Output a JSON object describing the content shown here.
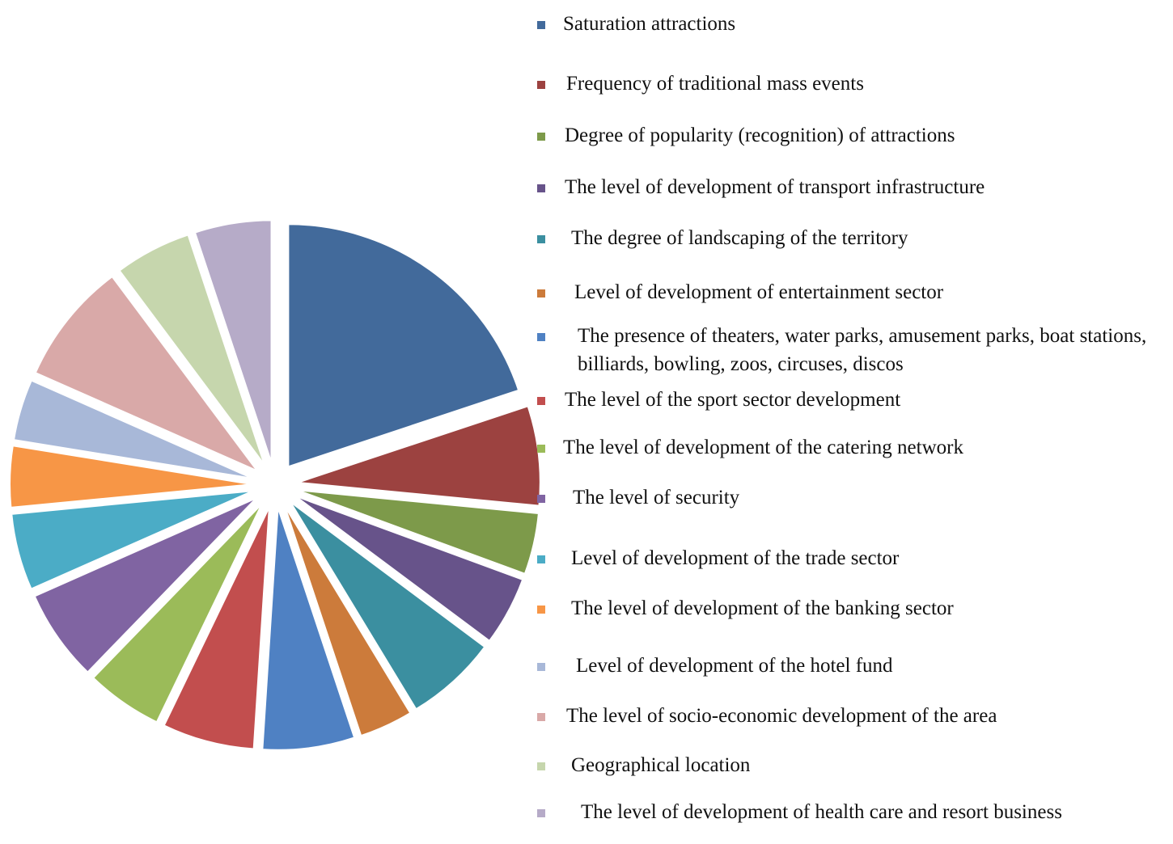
{
  "chart_data": {
    "type": "pie",
    "title": "",
    "exploded": true,
    "legend_position": "right",
    "start_angle_deg": 0,
    "direction": "clockwise",
    "slices": [
      {
        "label": "Saturation attractions",
        "value": 19.5,
        "color": "#426A9B"
      },
      {
        "label": "Frequency of traditional mass events",
        "value": 6.5,
        "color": "#9C4240"
      },
      {
        "label": "Degree of popularity (recognition) of attractions",
        "value": 4.0,
        "color": "#7D9A4A"
      },
      {
        "label": "The level of development of transport infrastructure",
        "value": 4.5,
        "color": "#67538A"
      },
      {
        "label": "The degree of landscaping of the territory",
        "value": 6.0,
        "color": "#3B8FA0"
      },
      {
        "label": "Level of development of entertainment sector",
        "value": 3.5,
        "color": "#CC7B3B"
      },
      {
        "label": "The presence of theaters, water parks, amusement parks, boat stations, billiards, bowling, zoos, circuses, discos",
        "value": 6.0,
        "color": "#4F81C3"
      },
      {
        "label": "The level of the sport sector development",
        "value": 6.0,
        "color": "#C24E4E"
      },
      {
        "label": "The level of development of the catering network",
        "value": 5.0,
        "color": "#9BBB59"
      },
      {
        "label": "The level of security",
        "value": 6.0,
        "color": "#8064A2"
      },
      {
        "label": "Level of development of the trade sector",
        "value": 5.0,
        "color": "#4BACC6"
      },
      {
        "label": "The level of development of the banking sector",
        "value": 4.0,
        "color": "#F79646"
      },
      {
        "label": "Level of development of the hotel fund",
        "value": 4.0,
        "color": "#A8B8D8"
      },
      {
        "label": "The level of socio-economic development of the area",
        "value": 8.0,
        "color": "#D9A9A8"
      },
      {
        "label": "Geographical location",
        "value": 5.0,
        "color": "#C6D6AD"
      },
      {
        "label": "The level of development of health care and resort business",
        "value": 5.0,
        "color": "#B6ABC8"
      }
    ]
  }
}
